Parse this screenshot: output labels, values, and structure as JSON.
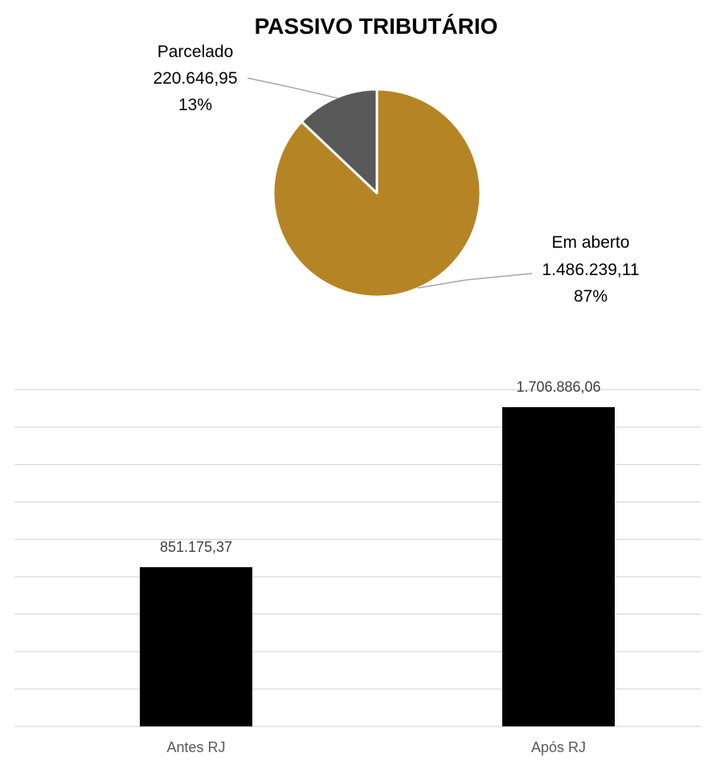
{
  "chart_data": [
    {
      "type": "pie",
      "title": "PASSIVO TRIBUTÁRIO",
      "slices": [
        {
          "name": "Em aberto",
          "value_label": "1.486.239,11",
          "value": 1486239.11,
          "percent_label": "87%",
          "percent": 87,
          "color": "#B58525"
        },
        {
          "name": "Parcelado",
          "value_label": "220.646,95",
          "value": 220646.95,
          "percent_label": "13%",
          "percent": 13,
          "color": "#595959"
        }
      ],
      "start": "12 o'clock, clockwise",
      "slice_border_color": "#FFFFFF",
      "leader_line_color": "#A6A6A6"
    },
    {
      "type": "bar",
      "categories": [
        "Antes RJ",
        "Após RJ"
      ],
      "values": [
        851175.37,
        1706886.06
      ],
      "value_labels": [
        "851.175,37",
        "1.706.886,06"
      ],
      "bar_color": "#000000",
      "gridline_color": "#D9D9D9",
      "grid": true,
      "ylim": [
        0,
        1800000
      ],
      "y_axis_labels_shown": false
    }
  ]
}
